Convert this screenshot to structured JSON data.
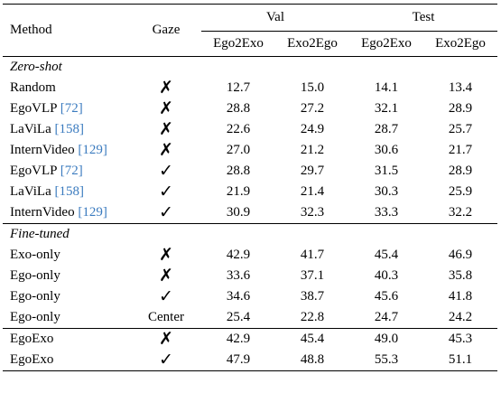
{
  "header": {
    "method": "Method",
    "gaze": "Gaze",
    "val": "Val",
    "test": "Test",
    "sub": [
      "Ego2Exo",
      "Exo2Ego",
      "Ego2Exo",
      "Exo2Ego"
    ]
  },
  "sections": [
    {
      "label": "Zero-shot",
      "rows": [
        {
          "method": "Random",
          "ref": "",
          "gaze": "✗",
          "v": [
            "12.7",
            "15.0",
            "14.1",
            "13.4"
          ],
          "bold": [
            false,
            false,
            false,
            false
          ]
        },
        {
          "method": "EgoVLP",
          "ref": "[72]",
          "gaze": "✗",
          "v": [
            "28.8",
            "27.2",
            "32.1",
            "28.9"
          ],
          "bold": [
            false,
            false,
            false,
            false
          ]
        },
        {
          "method": "LaViLa",
          "ref": "[158]",
          "gaze": "✗",
          "v": [
            "22.6",
            "24.9",
            "28.7",
            "25.7"
          ],
          "bold": [
            false,
            false,
            false,
            false
          ]
        },
        {
          "method": "InternVideo",
          "ref": "[129]",
          "gaze": "✗",
          "v": [
            "27.0",
            "21.2",
            "30.6",
            "21.7"
          ],
          "bold": [
            false,
            false,
            false,
            false
          ]
        },
        {
          "method": "EgoVLP",
          "ref": "[72]",
          "gaze": "✓",
          "v": [
            "28.8",
            "29.7",
            "31.5",
            "28.9"
          ],
          "bold": [
            false,
            false,
            false,
            false
          ]
        },
        {
          "method": "LaViLa",
          "ref": "[158]",
          "gaze": "✓",
          "v": [
            "21.9",
            "21.4",
            "30.3",
            "25.9"
          ],
          "bold": [
            false,
            false,
            false,
            false
          ]
        },
        {
          "method": "InternVideo",
          "ref": "[129]",
          "gaze": "✓",
          "v": [
            "30.9",
            "32.3",
            "33.3",
            "32.2"
          ],
          "bold": [
            true,
            true,
            true,
            true
          ]
        }
      ]
    },
    {
      "label": "Fine-tuned",
      "rows": [
        {
          "method": "Exo-only",
          "ref": "",
          "gaze": "✗",
          "v": [
            "42.9",
            "41.7",
            "45.4",
            "46.9"
          ],
          "bold": [
            false,
            false,
            false,
            false
          ]
        },
        {
          "method": "Ego-only",
          "ref": "",
          "gaze": "✗",
          "v": [
            "33.6",
            "37.1",
            "40.3",
            "35.8"
          ],
          "bold": [
            false,
            false,
            false,
            false
          ]
        },
        {
          "method": "Ego-only",
          "ref": "",
          "gaze": "✓",
          "v": [
            "34.6",
            "38.7",
            "45.6",
            "41.8"
          ],
          "bold": [
            false,
            false,
            false,
            false
          ]
        },
        {
          "method": "Ego-only",
          "ref": "",
          "gaze": "Center",
          "v": [
            "25.4",
            "22.8",
            "24.7",
            "24.2"
          ],
          "bold": [
            false,
            false,
            false,
            false
          ]
        }
      ]
    },
    {
      "label": "",
      "rows": [
        {
          "method": "EgoExo",
          "ref": "",
          "gaze": "✗",
          "v": [
            "42.9",
            "45.4",
            "49.0",
            "45.3"
          ],
          "bold": [
            false,
            false,
            false,
            false
          ]
        },
        {
          "method": "EgoExo",
          "ref": "",
          "gaze": "✓",
          "v": [
            "47.9",
            "48.8",
            "55.3",
            "51.1"
          ],
          "bold": [
            true,
            true,
            true,
            true
          ]
        }
      ]
    }
  ]
}
